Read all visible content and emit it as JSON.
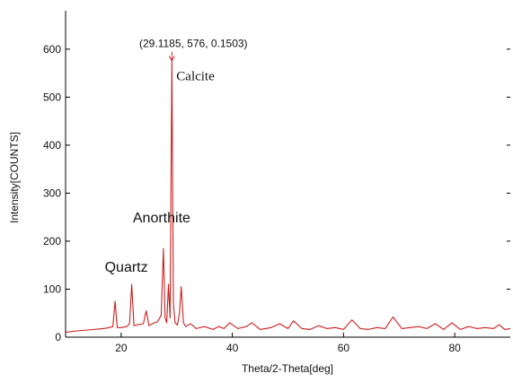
{
  "chart_data": {
    "type": "line",
    "title": "",
    "xlabel": "Theta/2-Theta[deg]",
    "ylabel": "Intensity[COUNTS]",
    "xlim": [
      10,
      90
    ],
    "ylim": [
      0,
      680
    ],
    "xticks": [
      20,
      40,
      60,
      80
    ],
    "yticks": [
      0,
      100,
      200,
      300,
      400,
      500,
      600
    ],
    "grid": false,
    "line_color": "#cc1f1f",
    "series": [
      {
        "x": [
          10,
          12,
          14,
          16,
          17.5,
          18.5,
          18.9,
          19.3,
          20,
          21,
          21.5,
          21.9,
          22.3,
          23,
          24,
          24.5,
          25,
          25.6,
          26.5,
          27.2,
          27.6,
          27.9,
          28.2,
          28.5,
          28.8,
          29.1185,
          29.4,
          29.7,
          30.1,
          30.5,
          30.8,
          31.2,
          31.6,
          32.5,
          33.5,
          35,
          36.5,
          37.5,
          38.5,
          39.5,
          41,
          42.5,
          43.5,
          45,
          47,
          48.5,
          50,
          51,
          52.5,
          54,
          55.5,
          57,
          58.5,
          60,
          61.5,
          63,
          64.5,
          66,
          67.5,
          68.9,
          70.5,
          72,
          73.5,
          75,
          76.5,
          78,
          79.5,
          81,
          82.5,
          84,
          85.5,
          87,
          88,
          89,
          90
        ],
        "y": [
          10,
          13,
          15,
          17,
          19,
          22,
          75,
          20,
          20,
          22,
          28,
          110,
          24,
          26,
          28,
          55,
          24,
          28,
          32,
          45,
          185,
          40,
          30,
          110,
          40,
          576,
          70,
          30,
          25,
          50,
          105,
          30,
          22,
          28,
          18,
          22,
          16,
          22,
          18,
          30,
          18,
          22,
          30,
          16,
          20,
          28,
          18,
          34,
          18,
          16,
          24,
          18,
          20,
          16,
          36,
          18,
          16,
          20,
          18,
          42,
          18,
          20,
          22,
          18,
          28,
          16,
          30,
          16,
          22,
          18,
          20,
          18,
          26,
          16,
          18
        ]
      }
    ],
    "annotations": [
      {
        "text": "(29.1185, 576, 0.1503)",
        "x": 29.1185,
        "y": 576
      },
      {
        "text": "Calcite",
        "x": 29.1185,
        "y": 576
      },
      {
        "text": "Anorthite",
        "x": 27.6,
        "y": 185
      },
      {
        "text": "Quartz",
        "x": 21.9,
        "y": 110
      }
    ]
  }
}
